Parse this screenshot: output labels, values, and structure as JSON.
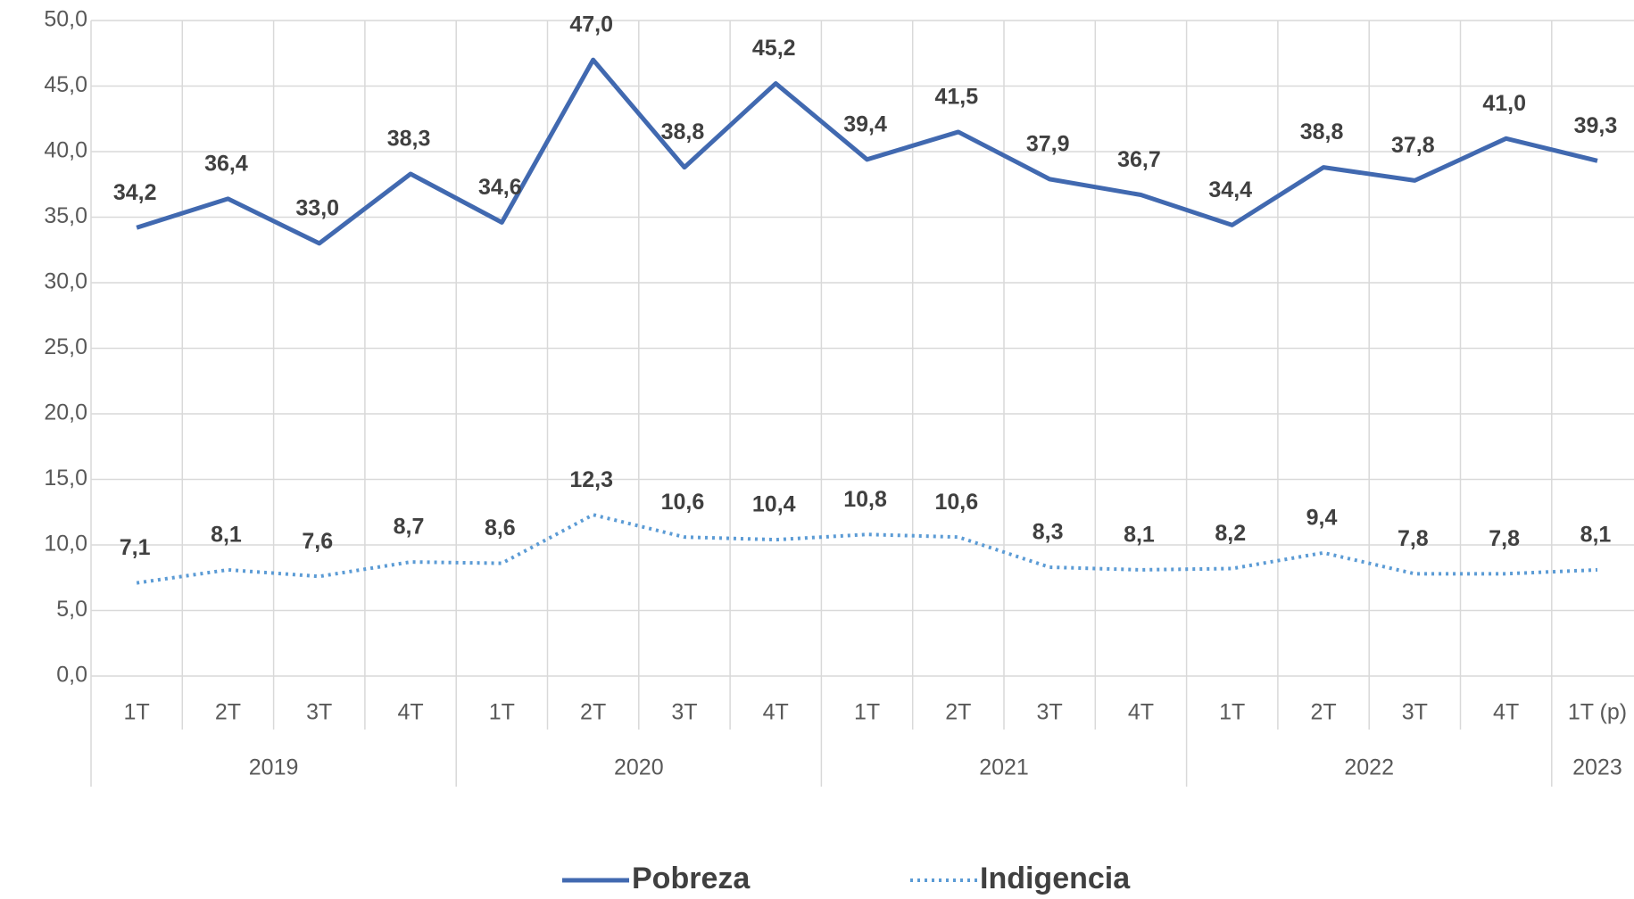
{
  "chart_data": {
    "type": "line",
    "categories": [
      "1T",
      "2T",
      "3T",
      "4T",
      "1T",
      "2T",
      "3T",
      "4T",
      "1T",
      "2T",
      "3T",
      "4T",
      "1T",
      "2T",
      "3T",
      "4T",
      "1T (p)"
    ],
    "x_groups": [
      "2019",
      "2020",
      "2021",
      "2022",
      "2023"
    ],
    "series": [
      {
        "name": "Pobreza",
        "color": "#4169b0",
        "style": "solid",
        "values": [
          34.2,
          36.4,
          33.0,
          38.3,
          34.6,
          47.0,
          38.8,
          45.2,
          39.4,
          41.5,
          37.9,
          36.7,
          34.4,
          38.8,
          37.8,
          41.0,
          39.3
        ],
        "value_labels": [
          "34,2",
          "36,4",
          "33,0",
          "38,3",
          "34,6",
          "47,0",
          "38,8",
          "45,2",
          "39,4",
          "41,5",
          "37,9",
          "36,7",
          "34,4",
          "38,8",
          "37,8",
          "41,0",
          "39,3"
        ]
      },
      {
        "name": "Indigencia",
        "color": "#5b9bd5",
        "style": "dotted",
        "values": [
          7.1,
          8.1,
          7.6,
          8.7,
          8.6,
          12.3,
          10.6,
          10.4,
          10.8,
          10.6,
          8.3,
          8.1,
          8.2,
          9.4,
          7.8,
          7.8,
          8.1
        ],
        "value_labels": [
          "7,1",
          "8,1",
          "7,6",
          "8,7",
          "8,6",
          "12,3",
          "10,6",
          "10,4",
          "10,8",
          "10,6",
          "8,3",
          "8,1",
          "8,2",
          "9,4",
          "7,8",
          "7,8",
          "8,1"
        ]
      }
    ],
    "ylim": [
      0,
      50
    ],
    "yticks": [
      {
        "value": 0,
        "label": "0,0"
      },
      {
        "value": 5,
        "label": "5,0"
      },
      {
        "value": 10,
        "label": "10,0"
      },
      {
        "value": 15,
        "label": "15,0"
      },
      {
        "value": 20,
        "label": "20,0"
      },
      {
        "value": 25,
        "label": "25,0"
      },
      {
        "value": 30,
        "label": "30,0"
      },
      {
        "value": 35,
        "label": "35,0"
      },
      {
        "value": 40,
        "label": "40,0"
      },
      {
        "value": 45,
        "label": "45,0"
      },
      {
        "value": 50,
        "label": "50,0"
      }
    ],
    "grid": true,
    "legend": "bottom"
  }
}
